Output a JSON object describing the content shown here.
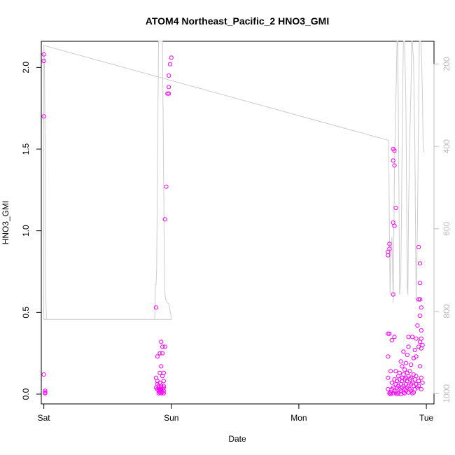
{
  "chart_data": {
    "type": "scatter",
    "title": "ATOM4 Northeast_Pacific_2 HNO3_GMI",
    "xlabel": "Date",
    "ylabel": "HNO3_GMI",
    "xlim": [
      -0.02,
      3.06
    ],
    "ylim": [
      -0.06,
      2.16
    ],
    "x_ticks": [
      {
        "value": 0,
        "label": "Sat"
      },
      {
        "value": 1,
        "label": "Sun"
      },
      {
        "value": 2,
        "label": "Mon"
      },
      {
        "value": 3,
        "label": "Tue"
      }
    ],
    "y_ticks": [
      {
        "value": 0.0,
        "label": "0.0"
      },
      {
        "value": 0.5,
        "label": "0.5"
      },
      {
        "value": 1.0,
        "label": "1.0"
      },
      {
        "value": 1.5,
        "label": "1.5"
      },
      {
        "value": 2.0,
        "label": "2.0"
      }
    ],
    "y2_ticks": [
      {
        "value": 200,
        "label": "200"
      },
      {
        "value": 400,
        "label": "400"
      },
      {
        "value": 600,
        "label": "600"
      },
      {
        "value": 800,
        "label": "800"
      },
      {
        "value": 1000,
        "label": "1000"
      }
    ],
    "y2lim": [
      1025,
      145
    ],
    "grid": false,
    "series": [
      {
        "color": "#ff00ff",
        "points": [
          [
            0.0,
            2.08
          ],
          [
            0.0,
            2.04
          ],
          [
            0.0,
            1.7
          ],
          [
            0.0,
            0.12
          ],
          [
            0.01,
            0.02
          ],
          [
            0.01,
            0.01
          ],
          [
            0.01,
            0.005
          ],
          [
            1.0,
            2.06
          ],
          [
            0.99,
            2.02
          ],
          [
            0.98,
            1.95
          ],
          [
            0.98,
            1.88
          ],
          [
            0.97,
            1.84
          ],
          [
            0.98,
            1.84
          ],
          [
            0.96,
            1.27
          ],
          [
            0.95,
            1.07
          ],
          [
            0.88,
            0.53
          ],
          [
            0.92,
            0.32
          ],
          [
            0.93,
            0.29
          ],
          [
            0.95,
            0.29
          ],
          [
            0.91,
            0.25
          ],
          [
            0.93,
            0.25
          ],
          [
            0.89,
            0.23
          ],
          [
            0.92,
            0.17
          ],
          [
            0.91,
            0.13
          ],
          [
            0.94,
            0.13
          ],
          [
            0.93,
            0.11
          ],
          [
            0.88,
            0.1
          ],
          [
            0.89,
            0.08
          ],
          [
            0.94,
            0.08
          ],
          [
            0.91,
            0.07
          ],
          [
            0.89,
            0.06
          ],
          [
            0.9,
            0.05
          ],
          [
            0.92,
            0.05
          ],
          [
            0.94,
            0.05
          ],
          [
            0.88,
            0.04
          ],
          [
            0.9,
            0.04
          ],
          [
            0.92,
            0.04
          ],
          [
            0.94,
            0.04
          ],
          [
            0.89,
            0.03
          ],
          [
            0.91,
            0.03
          ],
          [
            0.93,
            0.03
          ],
          [
            0.9,
            0.02
          ],
          [
            0.92,
            0.02
          ],
          [
            0.94,
            0.02
          ],
          [
            0.91,
            0.01
          ],
          [
            0.93,
            0.01
          ],
          [
            0.9,
            0.005
          ],
          [
            0.92,
            0.005
          ],
          [
            0.94,
            0.005
          ],
          [
            2.71,
            0.92
          ],
          [
            2.71,
            0.89
          ],
          [
            2.7,
            0.87
          ],
          [
            2.7,
            0.85
          ],
          [
            2.74,
            1.5
          ],
          [
            2.75,
            1.49
          ],
          [
            2.74,
            1.43
          ],
          [
            2.75,
            1.4
          ],
          [
            2.76,
            1.14
          ],
          [
            2.74,
            1.05
          ],
          [
            2.75,
            1.03
          ],
          [
            2.94,
            0.9
          ],
          [
            2.95,
            0.8
          ],
          [
            2.95,
            0.68
          ],
          [
            2.94,
            0.58
          ],
          [
            2.95,
            0.58
          ],
          [
            2.74,
            0.61
          ],
          [
            2.96,
            0.53
          ],
          [
            2.95,
            0.48
          ],
          [
            2.93,
            0.42
          ],
          [
            2.96,
            0.39
          ],
          [
            2.71,
            0.37
          ],
          [
            2.7,
            0.37
          ],
          [
            2.75,
            0.35
          ],
          [
            2.86,
            0.35
          ],
          [
            2.89,
            0.35
          ],
          [
            2.92,
            0.34
          ],
          [
            2.96,
            0.34
          ],
          [
            2.73,
            0.33
          ],
          [
            2.95,
            0.32
          ],
          [
            2.97,
            0.3
          ],
          [
            2.86,
            0.29
          ],
          [
            2.94,
            0.29
          ],
          [
            2.96,
            0.28
          ],
          [
            2.91,
            0.27
          ],
          [
            2.82,
            0.26
          ],
          [
            2.7,
            0.23
          ],
          [
            2.85,
            0.24
          ],
          [
            2.92,
            0.23
          ],
          [
            2.9,
            0.22
          ],
          [
            2.8,
            0.2
          ],
          [
            2.84,
            0.19
          ],
          [
            2.88,
            0.18
          ],
          [
            2.81,
            0.17
          ],
          [
            2.95,
            0.17
          ],
          [
            2.83,
            0.15
          ],
          [
            2.87,
            0.14
          ],
          [
            2.72,
            0.14
          ],
          [
            2.76,
            0.14
          ],
          [
            2.79,
            0.13
          ],
          [
            2.85,
            0.13
          ],
          [
            2.9,
            0.12
          ],
          [
            2.82,
            0.12
          ],
          [
            2.78,
            0.11
          ],
          [
            2.86,
            0.11
          ],
          [
            2.92,
            0.11
          ],
          [
            2.81,
            0.1
          ],
          [
            2.84,
            0.1
          ],
          [
            2.88,
            0.1
          ],
          [
            2.96,
            0.1
          ],
          [
            2.7,
            0.1
          ],
          [
            2.75,
            0.09
          ],
          [
            2.79,
            0.09
          ],
          [
            2.83,
            0.09
          ],
          [
            2.87,
            0.09
          ],
          [
            2.91,
            0.09
          ],
          [
            2.94,
            0.08
          ],
          [
            2.77,
            0.08
          ],
          [
            2.81,
            0.08
          ],
          [
            2.85,
            0.08
          ],
          [
            2.89,
            0.07
          ],
          [
            2.73,
            0.07
          ],
          [
            2.97,
            0.07
          ],
          [
            2.76,
            0.06
          ],
          [
            2.8,
            0.06
          ],
          [
            2.84,
            0.06
          ],
          [
            2.88,
            0.06
          ],
          [
            2.92,
            0.06
          ],
          [
            2.78,
            0.05
          ],
          [
            2.82,
            0.05
          ],
          [
            2.86,
            0.05
          ],
          [
            2.9,
            0.05
          ],
          [
            2.94,
            0.05
          ],
          [
            2.74,
            0.04
          ],
          [
            2.77,
            0.04
          ],
          [
            2.81,
            0.04
          ],
          [
            2.85,
            0.04
          ],
          [
            2.93,
            0.04
          ],
          [
            2.7,
            0.03
          ],
          [
            2.73,
            0.03
          ],
          [
            2.79,
            0.03
          ],
          [
            2.83,
            0.03
          ],
          [
            2.87,
            0.03
          ],
          [
            2.91,
            0.03
          ],
          [
            2.96,
            0.03
          ],
          [
            2.75,
            0.02
          ],
          [
            2.8,
            0.02
          ],
          [
            2.84,
            0.02
          ],
          [
            2.88,
            0.02
          ],
          [
            2.72,
            0.01
          ],
          [
            2.76,
            0.01
          ],
          [
            2.82,
            0.01
          ],
          [
            2.86,
            0.01
          ],
          [
            2.9,
            0.01
          ],
          [
            2.71,
            0.005
          ],
          [
            2.74,
            0.005
          ],
          [
            2.78,
            0.005
          ],
          [
            2.83,
            0.005
          ],
          [
            2.89,
            0.005
          ],
          [
            2.72,
            0.0
          ],
          [
            2.77,
            0.0
          ],
          [
            2.8,
            0.0
          ]
        ]
      },
      {
        "type": "line",
        "color": "#cccccc",
        "axis": "right",
        "x": [
          0.0,
          0.005,
          0.01,
          0.012,
          0.015,
          0.02,
          0.025,
          0.03,
          0.6,
          0.87,
          0.875,
          0.88,
          0.885,
          0.89,
          0.895,
          0.9,
          0.905,
          0.91,
          0.915,
          0.92,
          0.925,
          0.93,
          0.935,
          0.94,
          0.945,
          0.95,
          0.955,
          0.96,
          0.97,
          0.98,
          0.985,
          0.99,
          0.995,
          1.0,
          1.0,
          0.6,
          0.0,
          0.0,
          2.7,
          2.705,
          2.71,
          2.715,
          2.72,
          2.73,
          2.74,
          2.745,
          2.75,
          2.76,
          2.77,
          2.775,
          2.78,
          2.785,
          2.79,
          2.8,
          2.805,
          2.81,
          2.815,
          2.82,
          2.83,
          2.84,
          2.845,
          2.85,
          2.855,
          2.86,
          2.87,
          2.88,
          2.885,
          2.89,
          2.9,
          2.91,
          2.915,
          2.92,
          2.93,
          2.94,
          2.945,
          2.95,
          2.955,
          2.96,
          2.97,
          2.975,
          2.98
        ],
        "y": [
          155,
          200,
          400,
          600,
          760,
          820,
          820,
          820,
          820,
          820,
          735,
          735,
          700,
          500,
          300,
          145,
          145,
          145,
          145,
          145,
          145,
          145,
          300,
          500,
          700,
          760,
          770,
          775,
          780,
          782,
          790,
          800,
          810,
          820,
          820,
          820,
          820,
          155,
          385,
          400,
          600,
          760,
          680,
          620,
          780,
          620,
          460,
          300,
          145,
          145,
          300,
          500,
          760,
          720,
          560,
          400,
          250,
          145,
          145,
          300,
          500,
          740,
          760,
          560,
          380,
          250,
          145,
          145,
          200,
          400,
          600,
          780,
          600,
          300,
          145,
          145,
          145,
          160,
          280,
          400,
          415
        ]
      }
    ]
  }
}
